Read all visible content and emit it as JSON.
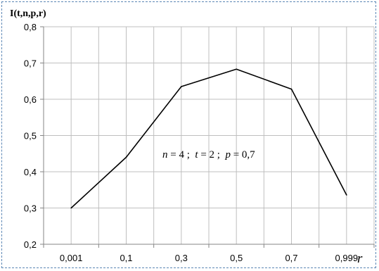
{
  "chart_data": {
    "type": "line",
    "title": "",
    "ylabel": "I(t,n,p,r)",
    "xlabel": "r",
    "categories": [
      "0,001",
      "0,1",
      "0,3",
      "0,5",
      "0,7",
      "0,999"
    ],
    "series": [
      {
        "values": [
          0.3,
          0.44,
          0.635,
          0.683,
          0.628,
          0.336
        ]
      }
    ],
    "ylim": [
      0.2,
      0.8
    ],
    "yticks": [
      0.2,
      0.3,
      0.4,
      0.5,
      0.6,
      0.7,
      0.8
    ],
    "ytick_labels": [
      "0,2",
      "0,3",
      "0,4",
      "0,5",
      "0,6",
      "0,7",
      "0,8"
    ],
    "grid": true,
    "annotation": {
      "n_var": "n",
      "n_val": " = 4 ;  ",
      "t_var": "t",
      "t_val": " = 2 ;  ",
      "p_var": "p",
      "p_val": " = 0,7"
    },
    "colors": {
      "line": "#000000",
      "grid": "#bfbfbf",
      "axis": "#868686",
      "border": "#5b86b5"
    }
  }
}
